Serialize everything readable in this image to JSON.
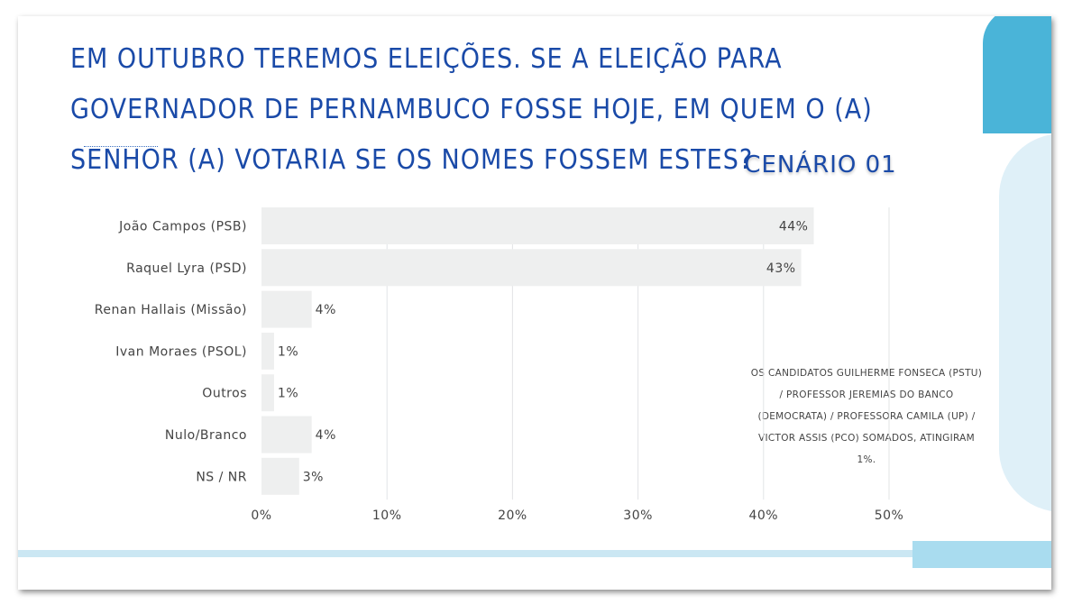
{
  "title": "Em outubro teremos eleições. Se a eleição para governador de Pernambuco fosse hoje, em quem o (a) senhor (a) votaria se os nomes fossem estes?",
  "scenario": "CENÁRIO 01",
  "note": "OS CANDIDATOS GUILHERME FONSECA (PSTU) / PROFESSOR JEREMIAS DO BANCO (DEMOCRATA) / PROFESSORA CAMILA (UP) / VICTOR ASSIS (PCO) SOMADOS, ATINGIRAM 1%.",
  "colors": {
    "title": "#1a4aa8",
    "bar": "#eeefef",
    "grid": "#e2e4e6",
    "text": "#444444",
    "accent": "#4ab4d8"
  },
  "chart_data": {
    "type": "bar",
    "orientation": "horizontal",
    "categories": [
      "João Campos (PSB)",
      "Raquel Lyra (PSD)",
      "Renan Hallais (Missão)",
      "Ivan Moraes (PSOL)",
      "Outros",
      "Nulo/Branco",
      "NS / NR"
    ],
    "values": [
      44,
      43,
      4,
      1,
      1,
      4,
      3
    ],
    "value_labels": [
      "44%",
      "43%",
      "4%",
      "1%",
      "1%",
      "4%",
      "3%"
    ],
    "xlim": [
      0,
      50
    ],
    "xticks": [
      0,
      10,
      20,
      30,
      40,
      50
    ],
    "xtick_labels": [
      "0%",
      "10%",
      "20%",
      "30%",
      "40%",
      "50%"
    ],
    "grid": true,
    "title": "",
    "xlabel": "",
    "ylabel": ""
  }
}
